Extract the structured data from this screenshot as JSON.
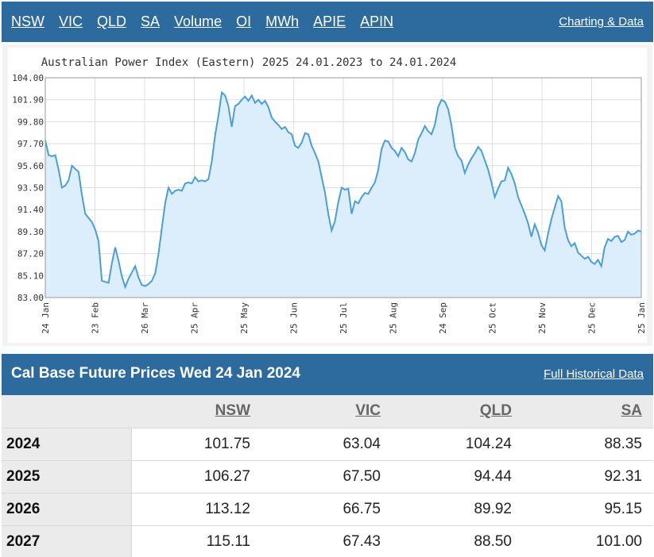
{
  "nav": {
    "tabs": [
      "NSW",
      "VIC",
      "QLD",
      "SA",
      "Volume",
      "OI",
      "MWh",
      "APIE",
      "APIN"
    ],
    "right_link": "Charting & Data"
  },
  "chart_data": {
    "type": "area",
    "title": "Australian Power Index (Eastern) 2025 24.01.2023 to 24.01.2024",
    "ylim": [
      83.0,
      104.0
    ],
    "y_ticks": [
      "104.00",
      "101.90",
      "99.80",
      "97.70",
      "95.60",
      "93.50",
      "91.40",
      "89.30",
      "87.20",
      "85.10",
      "83.00"
    ],
    "x_ticks": [
      "24 Jan",
      "23 Feb",
      "26 Mar",
      "25 Apr",
      "25 May",
      "25 Jun",
      "25 Jul",
      "25 Aug",
      "24 Sep",
      "25 Oct",
      "25 Nov",
      "25 Dec",
      "25 Jan"
    ],
    "grid": true,
    "line_color": "#4a9fd8",
    "fill_color": "#dcedfb",
    "series": [
      {
        "values": [
          98.0,
          96.6,
          96.5,
          96.6,
          95.2,
          93.5,
          93.7,
          94.2,
          95.6,
          95.3,
          95.0,
          92.8,
          91.0,
          90.6,
          90.2,
          89.5,
          88.4,
          84.6,
          84.5,
          84.4,
          86.3,
          87.8,
          86.5,
          85.0,
          84.0,
          84.8,
          85.4,
          86.0,
          84.9,
          84.2,
          84.1,
          84.3,
          84.6,
          85.3,
          87.2,
          89.6,
          92.0,
          93.5,
          92.9,
          93.2,
          93.3,
          93.2,
          93.9,
          94.0,
          93.9,
          94.5,
          94.1,
          94.2,
          94.1,
          94.3,
          96.0,
          98.5,
          100.4,
          102.6,
          102.3,
          101.3,
          99.3,
          101.3,
          101.5,
          101.9,
          102.2,
          101.8,
          102.3,
          101.6,
          101.9,
          101.5,
          101.8,
          101.2,
          100.2,
          99.8,
          99.5,
          99.1,
          99.3,
          98.8,
          98.6,
          97.5,
          97.3,
          97.8,
          98.7,
          98.6,
          97.5,
          96.8,
          96.0,
          94.5,
          93.0,
          91.0,
          89.4,
          90.3,
          92.1,
          93.5,
          93.3,
          93.4,
          91.0,
          92.2,
          92.0,
          92.6,
          93.0,
          92.9,
          93.5,
          94.0,
          95.2,
          97.2,
          98.0,
          97.9,
          97.3,
          97.0,
          96.5,
          97.3,
          96.9,
          96.2,
          96.0,
          96.8,
          98.1,
          98.7,
          99.4,
          98.9,
          98.6,
          99.5,
          101.2,
          101.9,
          101.7,
          101.0,
          99.4,
          97.3,
          96.5,
          96.1,
          94.9,
          95.7,
          96.3,
          96.8,
          97.4,
          97.0,
          96.1,
          95.2,
          94.0,
          92.6,
          93.4,
          94.1,
          94.2,
          95.4,
          94.8,
          93.9,
          92.6,
          91.8,
          91.0,
          90.1,
          88.8,
          90.0,
          89.2,
          88.0,
          87.5,
          89.1,
          90.5,
          91.6,
          92.7,
          92.2,
          89.7,
          88.5,
          87.9,
          88.2,
          87.3,
          87.0,
          86.7,
          86.9,
          86.4,
          86.2,
          86.6,
          86.0,
          87.8,
          88.6,
          88.4,
          88.8,
          88.9,
          88.3,
          88.5,
          89.3,
          89.0,
          89.1,
          89.4,
          89.3
        ]
      }
    ]
  },
  "prices": {
    "title": "Cal Base Future Prices Wed 24 Jan 2024",
    "right_link": "Full Historical Data",
    "columns": [
      "NSW",
      "VIC",
      "QLD",
      "SA"
    ],
    "rows": [
      {
        "year": "2024",
        "values": [
          "101.75",
          "63.04",
          "104.24",
          "88.35"
        ]
      },
      {
        "year": "2025",
        "values": [
          "106.27",
          "67.50",
          "94.44",
          "92.31"
        ]
      },
      {
        "year": "2026",
        "values": [
          "113.12",
          "66.75",
          "89.92",
          "95.15"
        ]
      },
      {
        "year": "2027",
        "values": [
          "115.11",
          "67.43",
          "88.50",
          "101.00"
        ]
      }
    ]
  }
}
